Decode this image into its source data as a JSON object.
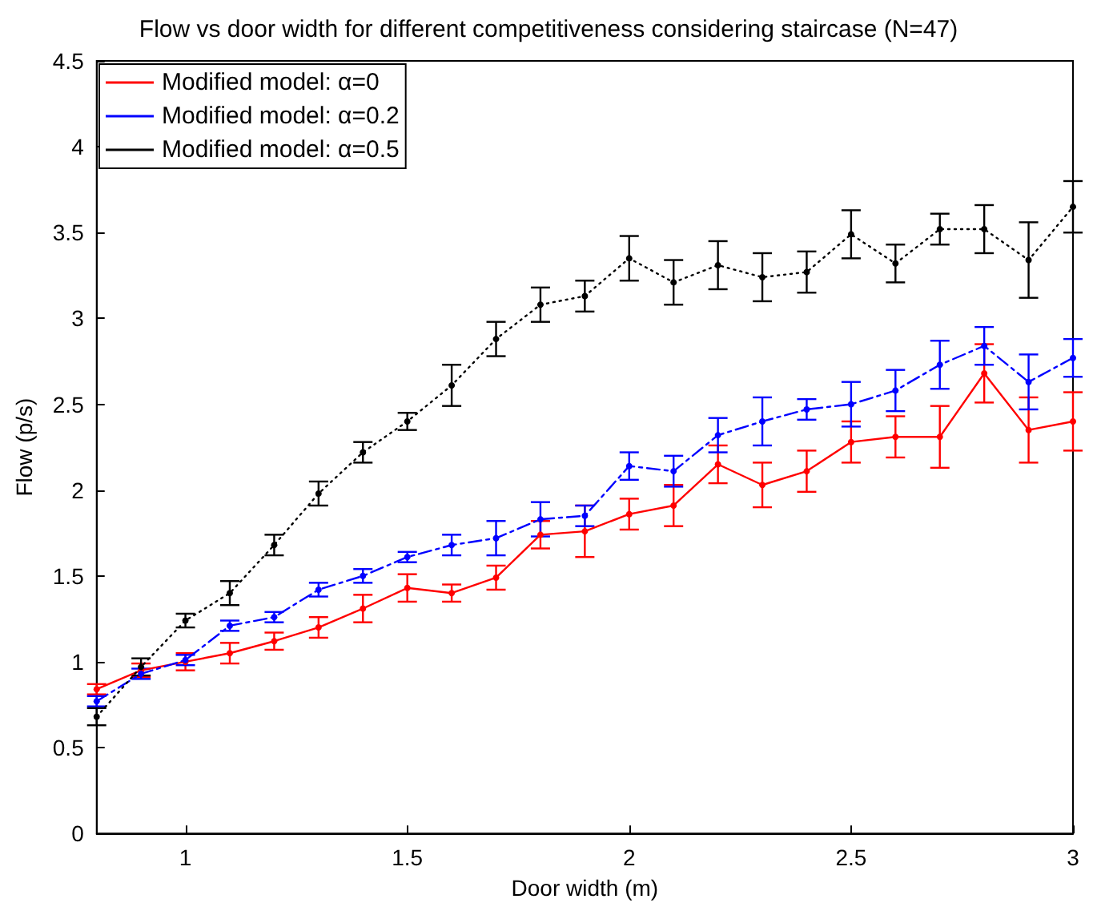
{
  "chart_data": {
    "type": "line",
    "title": "Flow vs door width for different competitiveness considering staircase (N=47)",
    "xlabel": "Door width (m)",
    "ylabel": "Flow (p/s)",
    "x": [
      0.8,
      0.9,
      1.0,
      1.1,
      1.2,
      1.3,
      1.4,
      1.5,
      1.6,
      1.7,
      1.8,
      1.9,
      2.0,
      2.1,
      2.2,
      2.3,
      2.4,
      2.5,
      2.6,
      2.7,
      2.8,
      2.9,
      3.0
    ],
    "series": [
      {
        "name": "Modified model: α=0",
        "color": "#ff0000",
        "line_style": "solid",
        "values": [
          0.84,
          0.95,
          1.0,
          1.05,
          1.12,
          1.2,
          1.31,
          1.43,
          1.4,
          1.49,
          1.74,
          1.76,
          1.86,
          1.91,
          2.15,
          2.03,
          2.11,
          2.28,
          2.31,
          2.31,
          2.68,
          2.35,
          2.4
        ],
        "errors": [
          0.03,
          0.04,
          0.05,
          0.06,
          0.05,
          0.06,
          0.08,
          0.08,
          0.05,
          0.07,
          0.08,
          0.15,
          0.09,
          0.12,
          0.11,
          0.13,
          0.12,
          0.12,
          0.12,
          0.18,
          0.17,
          0.19,
          0.17
        ]
      },
      {
        "name": "Modified model: α=0.2",
        "color": "#0000ff",
        "line_style": "dashed",
        "values": [
          0.77,
          0.93,
          1.01,
          1.21,
          1.26,
          1.42,
          1.5,
          1.61,
          1.68,
          1.72,
          1.83,
          1.85,
          2.14,
          2.11,
          2.32,
          2.4,
          2.47,
          2.5,
          2.58,
          2.73,
          2.84,
          2.63,
          2.77
        ],
        "errors": [
          0.03,
          0.03,
          0.03,
          0.03,
          0.03,
          0.04,
          0.04,
          0.03,
          0.06,
          0.1,
          0.1,
          0.06,
          0.08,
          0.09,
          0.1,
          0.14,
          0.06,
          0.13,
          0.12,
          0.14,
          0.11,
          0.16,
          0.11
        ]
      },
      {
        "name": "Modified model: α=0.5",
        "color": "#000000",
        "line_style": "dotted",
        "values": [
          0.68,
          0.97,
          1.24,
          1.4,
          1.68,
          1.98,
          2.22,
          2.4,
          2.61,
          2.88,
          3.08,
          3.13,
          3.35,
          3.21,
          3.31,
          3.24,
          3.27,
          3.49,
          3.32,
          3.52,
          3.52,
          3.34,
          3.65
        ],
        "errors": [
          0.05,
          0.05,
          0.04,
          0.07,
          0.06,
          0.07,
          0.06,
          0.05,
          0.12,
          0.1,
          0.1,
          0.09,
          0.13,
          0.13,
          0.14,
          0.14,
          0.12,
          0.14,
          0.11,
          0.09,
          0.14,
          0.22,
          0.15
        ]
      }
    ],
    "xlim": [
      0.8,
      3
    ],
    "xticks": [
      1,
      1.5,
      2,
      2.5,
      3
    ],
    "ylim": [
      0,
      4.5
    ],
    "yticks": [
      0,
      0.5,
      1,
      1.5,
      2,
      2.5,
      3,
      3.5,
      4,
      4.5
    ],
    "grid": false,
    "legend": "top left",
    "marker": "circle"
  }
}
